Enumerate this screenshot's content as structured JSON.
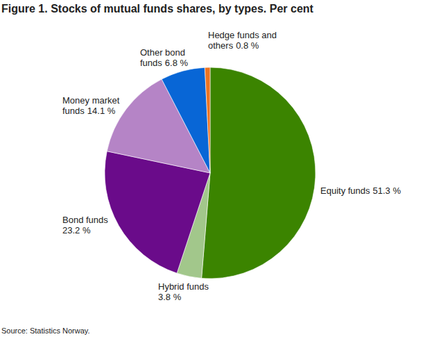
{
  "chart_data": {
    "type": "pie",
    "title": "Figure 1. Stocks of mutual funds shares, by types. Per cent",
    "categories": [
      "Equity funds",
      "Hybrid funds",
      "Bond funds",
      "Money market funds",
      "Other bond funds",
      "Hedge funds and others"
    ],
    "values": [
      51.3,
      3.8,
      23.2,
      14.1,
      6.8,
      0.8
    ],
    "value_labels": [
      "51.3 %",
      "3.8 %",
      "23.2 %",
      "14.1 %",
      "6.8 %",
      "0.8 %"
    ],
    "colors": [
      "#3b8400",
      "#a2c78b",
      "#6a0b8a",
      "#b584c6",
      "#0866d6",
      "#ed7422"
    ],
    "data_labels": true,
    "annotations": [
      "Source: Statistics Norway."
    ]
  }
}
